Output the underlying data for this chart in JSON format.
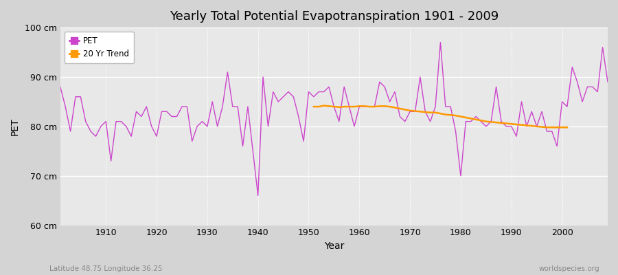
{
  "title": "Yearly Total Potential Evapotranspiration 1901 - 2009",
  "xlabel": "Year",
  "ylabel": "PET",
  "legend_pet": "PET",
  "legend_trend": "20 Yr Trend",
  "lat_lon_label": "Latitude 48.75 Longitude 36.25",
  "watermark": "worldspecies.org",
  "ylim": [
    60,
    100
  ],
  "yticks": [
    60,
    70,
    80,
    90,
    100
  ],
  "ytick_labels": [
    "60 cm",
    "70 cm",
    "80 cm",
    "90 cm",
    "100 cm"
  ],
  "xticks": [
    1910,
    1920,
    1930,
    1940,
    1950,
    1960,
    1970,
    1980,
    1990,
    2000
  ],
  "xlim": [
    1901,
    2009
  ],
  "fig_bg_color": "#d4d4d4",
  "plot_bg_color": "#e8e8e8",
  "pet_color": "#cc44cc",
  "trend_color": "#ff9900",
  "years": [
    1901,
    1902,
    1903,
    1904,
    1905,
    1906,
    1907,
    1908,
    1909,
    1910,
    1911,
    1912,
    1913,
    1914,
    1915,
    1916,
    1917,
    1918,
    1919,
    1920,
    1921,
    1922,
    1923,
    1924,
    1925,
    1926,
    1927,
    1928,
    1929,
    1930,
    1931,
    1932,
    1933,
    1934,
    1935,
    1936,
    1937,
    1938,
    1939,
    1940,
    1941,
    1942,
    1943,
    1944,
    1945,
    1946,
    1947,
    1948,
    1949,
    1950,
    1951,
    1952,
    1953,
    1954,
    1955,
    1956,
    1957,
    1958,
    1959,
    1960,
    1961,
    1962,
    1963,
    1964,
    1965,
    1966,
    1967,
    1968,
    1969,
    1970,
    1971,
    1972,
    1973,
    1974,
    1975,
    1976,
    1977,
    1978,
    1979,
    1980,
    1981,
    1982,
    1983,
    1984,
    1985,
    1986,
    1987,
    1988,
    1989,
    1990,
    1991,
    1992,
    1993,
    1994,
    1995,
    1996,
    1997,
    1998,
    1999,
    2000,
    2001,
    2002,
    2003,
    2004,
    2005,
    2006,
    2007,
    2008,
    2009
  ],
  "pet": [
    88,
    84,
    79,
    86,
    86,
    81,
    79,
    78,
    80,
    81,
    73,
    81,
    81,
    80,
    78,
    83,
    82,
    84,
    80,
    78,
    83,
    83,
    82,
    82,
    84,
    84,
    77,
    80,
    81,
    80,
    85,
    80,
    84,
    91,
    84,
    84,
    76,
    84,
    75,
    66,
    90,
    80,
    87,
    85,
    86,
    87,
    86,
    82,
    77,
    87,
    86,
    87,
    87,
    88,
    84,
    81,
    88,
    84,
    80,
    84,
    84,
    84,
    84,
    89,
    88,
    85,
    87,
    82,
    81,
    83,
    83,
    90,
    83,
    81,
    84,
    97,
    84,
    84,
    79,
    70,
    81,
    81,
    82,
    81,
    80,
    81,
    88,
    81,
    80,
    80,
    78,
    85,
    80,
    83,
    80,
    83,
    79,
    79,
    76,
    85,
    84,
    92,
    89,
    85,
    88,
    88,
    87,
    96,
    89
  ],
  "trend_years": [
    1951,
    1952,
    1953,
    1954,
    1955,
    1956,
    1957,
    1958,
    1959,
    1960,
    1961,
    1962,
    1963,
    1964,
    1965,
    1966,
    1967,
    1968,
    1969,
    1970,
    1971,
    1972,
    1973,
    1974,
    1975,
    1976,
    1977,
    1978,
    1979,
    1980,
    1981,
    1982,
    1983,
    1984,
    1985,
    1986,
    1987,
    1988,
    1989,
    1990,
    1991,
    1992,
    1993,
    1994,
    1995,
    1996,
    1997,
    1998,
    1999,
    2000,
    2001
  ],
  "trend": [
    84.0,
    84.0,
    84.2,
    84.1,
    84.0,
    83.9,
    84.0,
    84.0,
    84.0,
    84.1,
    84.1,
    84.0,
    84.0,
    84.1,
    84.1,
    84.0,
    83.8,
    83.6,
    83.4,
    83.2,
    83.1,
    83.0,
    82.9,
    82.8,
    82.8,
    82.6,
    82.4,
    82.3,
    82.2,
    82.0,
    81.8,
    81.6,
    81.4,
    81.2,
    81.0,
    80.9,
    80.8,
    80.7,
    80.6,
    80.5,
    80.4,
    80.3,
    80.2,
    80.1,
    80.0,
    79.9,
    79.8,
    79.8,
    79.8,
    79.8,
    79.8
  ]
}
